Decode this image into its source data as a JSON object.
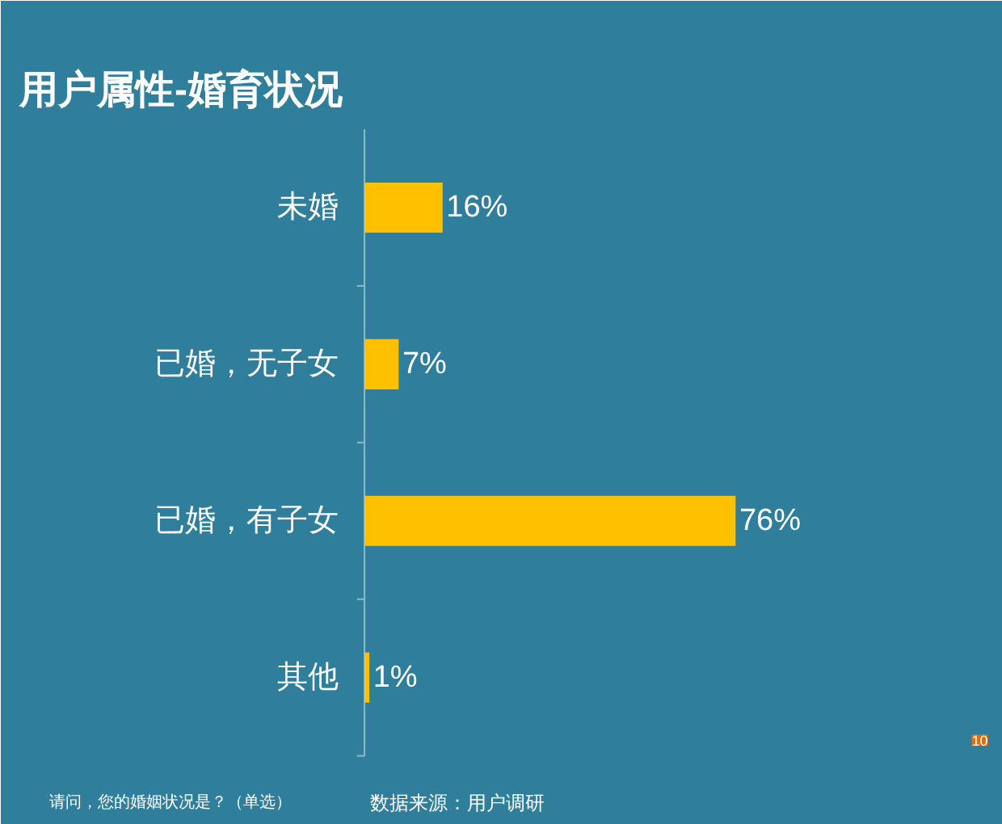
{
  "chart_data": {
    "type": "bar",
    "orientation": "horizontal",
    "title": "用户属性-婚育状况",
    "categories": [
      "未婚",
      "已婚，无子女",
      "已婚，有子女",
      "其他"
    ],
    "values": [
      16,
      7,
      76,
      1
    ],
    "value_labels": [
      "16%",
      "7%",
      "76%",
      "1%"
    ],
    "color": "#ffc000",
    "annotations": [
      "请问，您的婚姻状况是？（单选）",
      "数据来源：用户调研",
      "10"
    ]
  }
}
